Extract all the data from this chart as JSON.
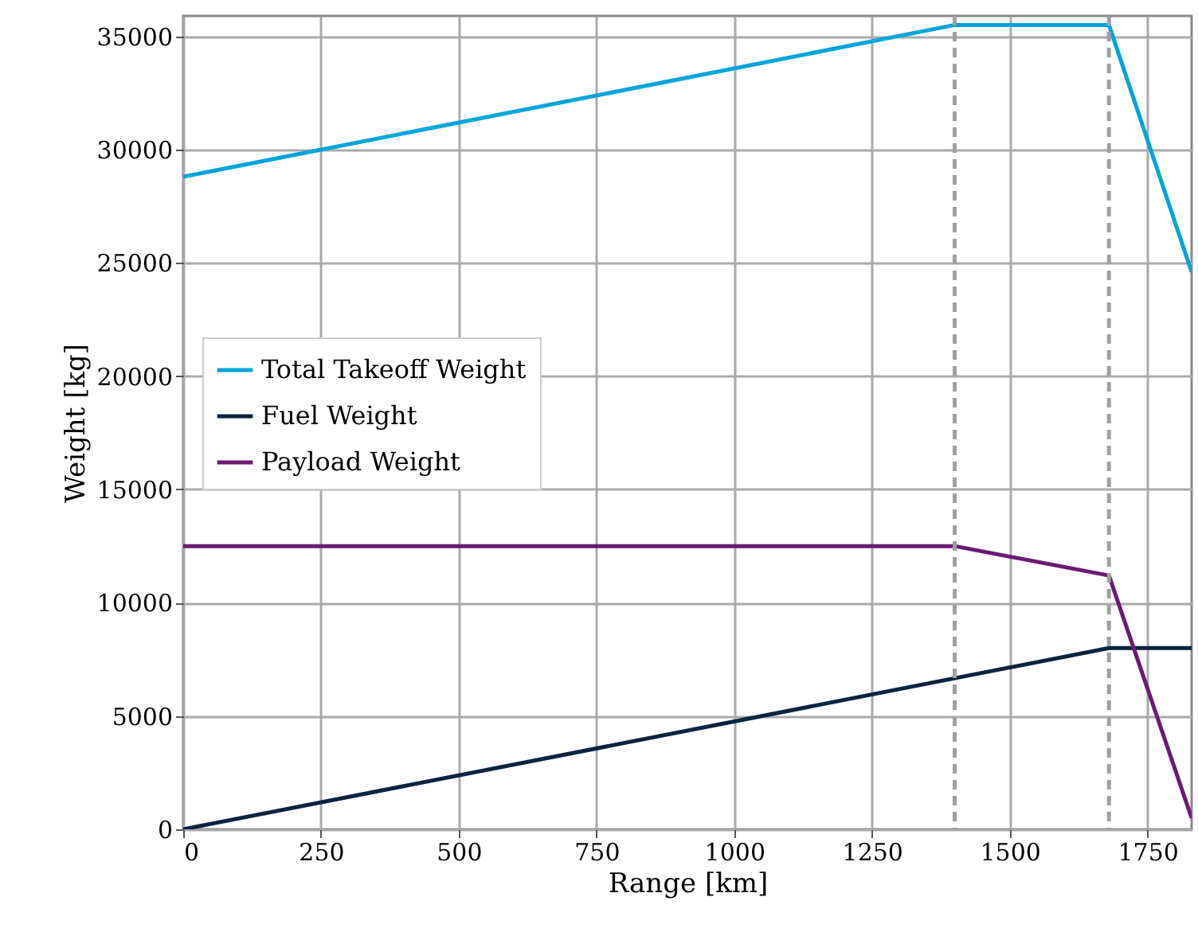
{
  "chart_data": {
    "type": "line",
    "xlabel": "Range [km]",
    "ylabel": "Weight [kg]",
    "xlim": [
      0,
      1830
    ],
    "xticks": [
      0,
      250,
      500,
      750,
      1000,
      1250,
      1500,
      1750
    ],
    "ylim": [
      0,
      35900
    ],
    "yticks": [
      0,
      5000,
      10000,
      15000,
      20000,
      25000,
      30000,
      35000
    ],
    "grid": true,
    "legend": "left",
    "line_style": "solid",
    "marker": "none",
    "series": [
      {
        "name": "Total Takeoff Weight",
        "color": "#00a5d8",
        "x": [
          0,
          1400,
          1680,
          1830
        ],
        "values": [
          28800,
          35500,
          35500,
          24600
        ]
      },
      {
        "name": "Fuel Weight",
        "color": "#0b2340",
        "x": [
          0,
          1680,
          1830
        ],
        "values": [
          0,
          8000,
          8000
        ]
      },
      {
        "name": "Payload Weight",
        "color": "#6a1b72",
        "x": [
          0,
          1400,
          1680,
          1830
        ],
        "values": [
          12500,
          12500,
          11200,
          500
        ]
      }
    ],
    "ref_lines": [
      {
        "axis": "x",
        "value": 1400,
        "color": "#a0a0a0",
        "line_style": "dashed"
      },
      {
        "axis": "x",
        "value": 1680,
        "color": "#a0a0a0",
        "line_style": "dashed"
      }
    ]
  }
}
